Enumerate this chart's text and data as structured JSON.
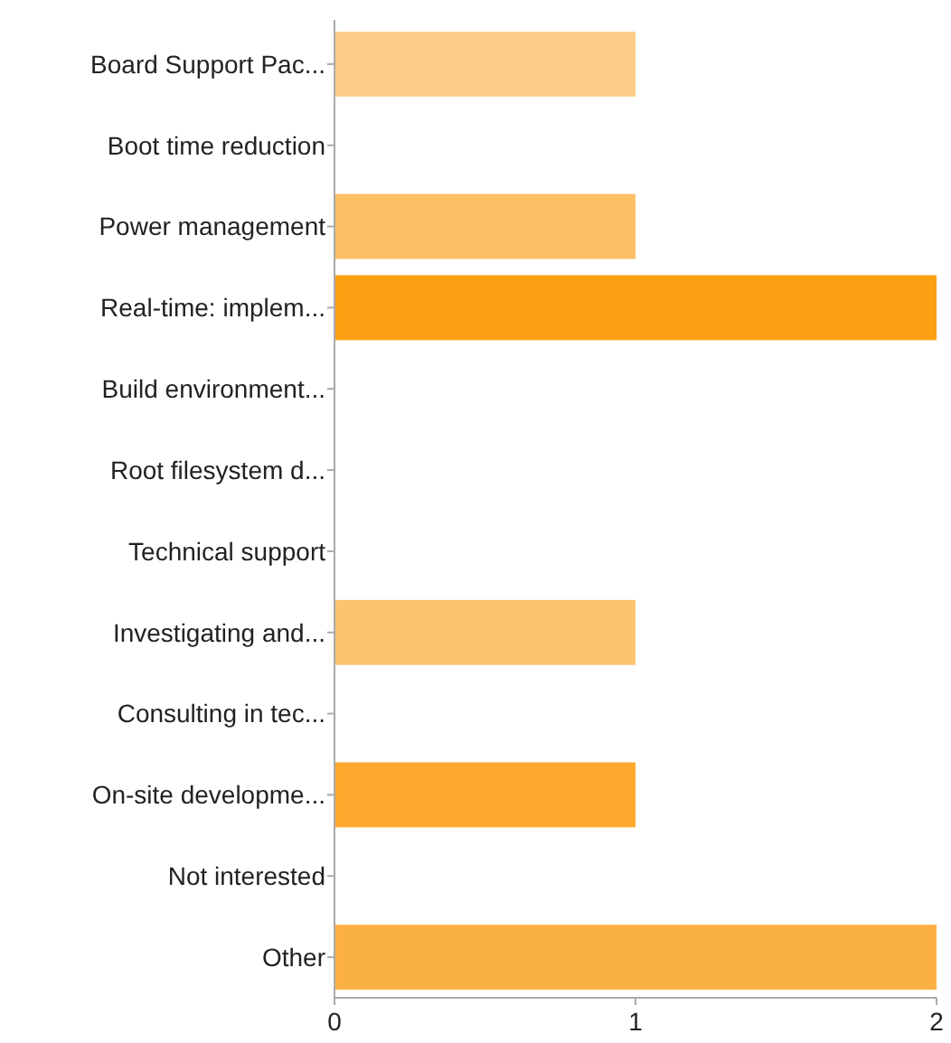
{
  "chart_data": {
    "type": "bar",
    "orientation": "horizontal",
    "categories": [
      "Board Support Pac...",
      "Boot time reduction",
      "Power management",
      "Real-time: implem...",
      "Build environment...",
      "Root filesystem d...",
      "Technical support",
      "Investigating and...",
      "Consulting in tec...",
      "On-site developme...",
      "Not interested",
      "Other"
    ],
    "values": [
      1,
      0,
      1,
      2,
      0,
      0,
      0,
      1,
      0,
      1,
      0,
      2
    ],
    "colors": [
      "#fdcd88",
      "#fdc77a",
      "#fcbf66",
      "#fb9f13",
      "#fcb54d",
      "#fdc47a",
      "#fcb650",
      "#fcc36f",
      "#fcba5a",
      "#fca92e",
      "#fcc06a",
      "#fbb044"
    ],
    "xlim": [
      0,
      2
    ],
    "xticks": [
      0,
      1,
      2
    ],
    "grid": false
  }
}
